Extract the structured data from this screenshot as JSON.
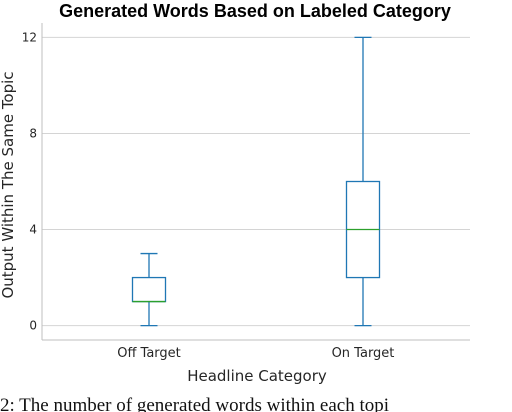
{
  "chart_data": {
    "type": "box",
    "title": "Generated Words Based on Labeled Category",
    "xlabel": "Headline Category",
    "ylabel": "Output Within The Same Topic",
    "ylim": [
      -0.6,
      12.6
    ],
    "yticks": [
      0,
      4,
      8,
      12
    ],
    "ytick_labels": [
      "0",
      "4",
      "8",
      "12"
    ],
    "grid": "horizontal",
    "categories": [
      "Off Target",
      "On Target"
    ],
    "boxes": [
      {
        "category": "Off Target",
        "whisker_low": 0,
        "q1": 1,
        "median": 1,
        "q3": 2,
        "whisker_high": 3
      },
      {
        "category": "On Target",
        "whisker_low": 0,
        "q1": 2,
        "median": 4,
        "q3": 6,
        "whisker_high": 12
      }
    ],
    "colors": {
      "box": "#1f77b4",
      "median": "#2ca02c",
      "grid": "#d4d4d4",
      "axes": "#bfbfbf"
    }
  },
  "caption": "2: The number of generated words within each topi"
}
